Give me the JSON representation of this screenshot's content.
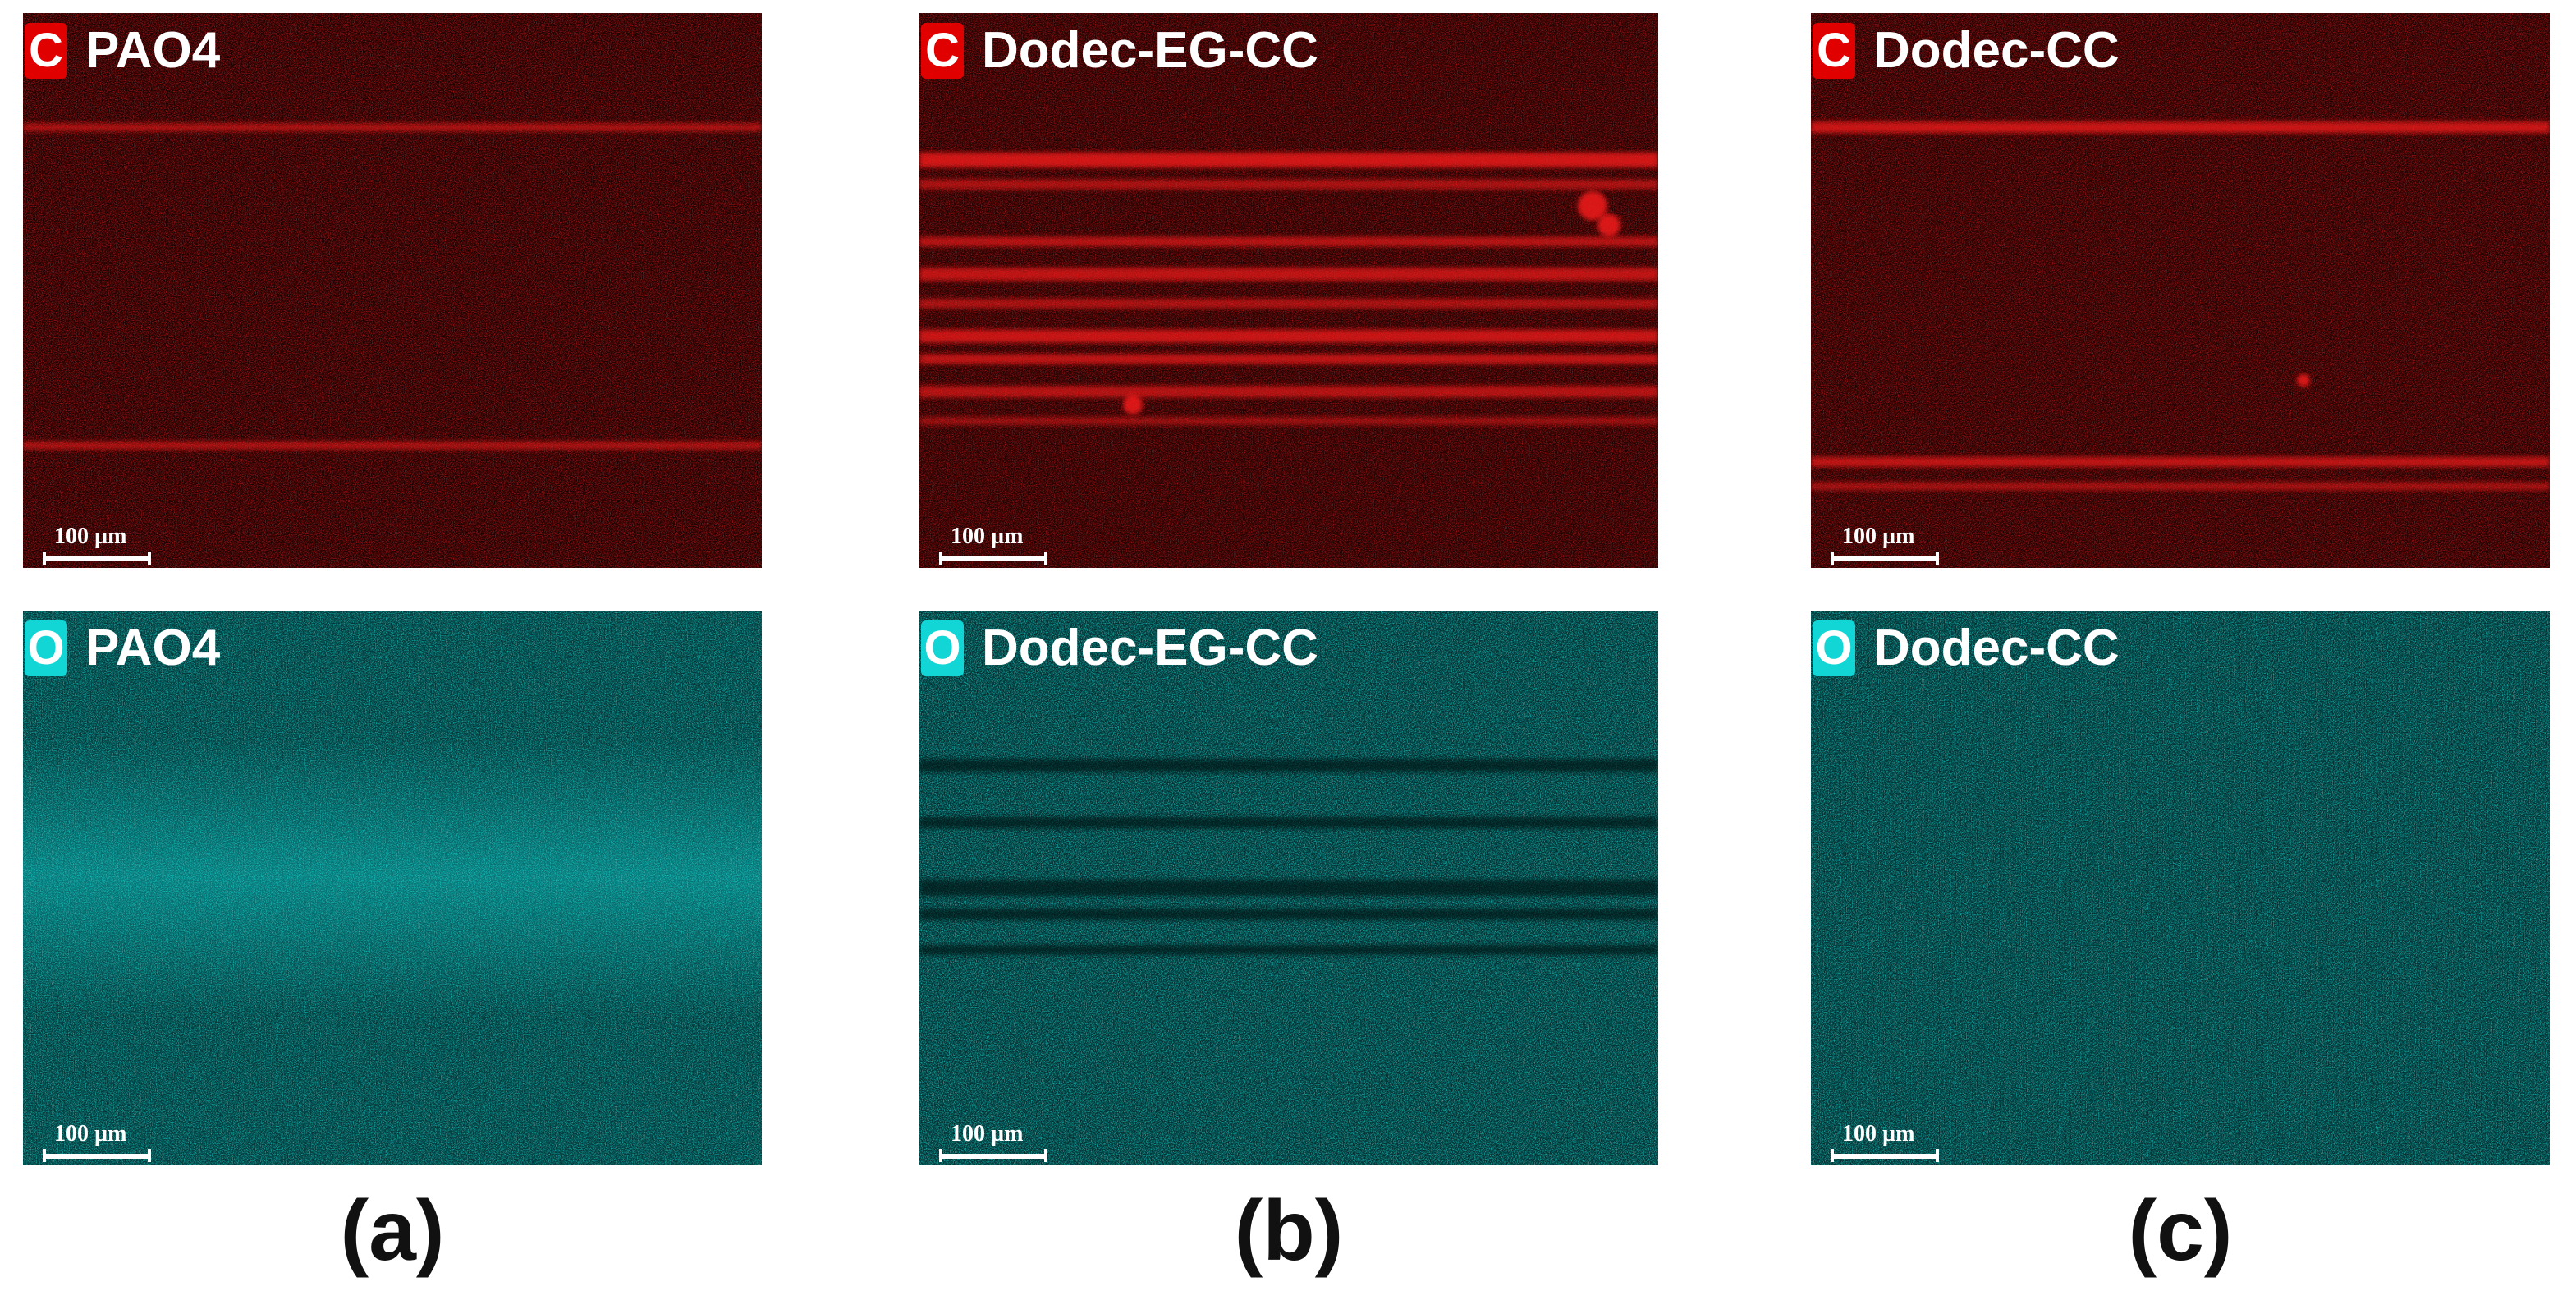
{
  "colors": {
    "carbon_map": "#e00000",
    "oxygen_map": "#12d6d6",
    "background": "#ffffff"
  },
  "panels": [
    {
      "element": "C",
      "sample": "PAO4",
      "scale": "100 µm",
      "variant": "C-a"
    },
    {
      "element": "C",
      "sample": "Dodec-EG-CC",
      "scale": "100 µm",
      "variant": "C-b"
    },
    {
      "element": "C",
      "sample": "Dodec-CC",
      "scale": "100 µm",
      "variant": "C-c"
    },
    {
      "element": "O",
      "sample": "PAO4",
      "scale": "100 µm",
      "variant": "O-a"
    },
    {
      "element": "O",
      "sample": "Dodec-EG-CC",
      "scale": "100 µm",
      "variant": "O-b"
    },
    {
      "element": "O",
      "sample": "Dodec-CC",
      "scale": "100 µm",
      "variant": "O-c"
    }
  ],
  "captions": [
    "(a)",
    "(b)",
    "(c)"
  ]
}
